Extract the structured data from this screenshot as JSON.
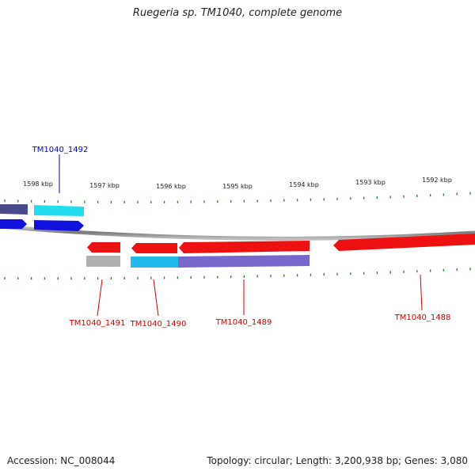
{
  "title": "Ruegeria sp. TM1040, complete genome",
  "footer": {
    "accession": "Accession: NC_008044",
    "summary": "Topology: circular; Length: 3,200,938 bp; Genes: 3,080"
  },
  "colors": {
    "red": "#ee1111",
    "blue": "#1111dd",
    "cyan": "#22ddee",
    "purple": "#7766cc",
    "navy": "#4a4a8a",
    "gray": "#b0b0b0",
    "tick": "#1f7a1f",
    "label_red": "#cc0000",
    "label_blue": "#0000cc"
  },
  "scale": {
    "labels": [
      "1598 kbp",
      "1597 kbp",
      "1596 kbp",
      "1595 kbp",
      "1594 kbp",
      "1593 kbp",
      "1592 kbp"
    ]
  },
  "genes": [
    {
      "id": "TM1040_1492",
      "strand": "plus"
    },
    {
      "id": "TM1040_1491",
      "strand": "minus"
    },
    {
      "id": "TM1040_1490",
      "strand": "minus"
    },
    {
      "id": "TM1040_1489",
      "strand": "minus"
    },
    {
      "id": "TM1040_1488",
      "strand": "minus"
    }
  ]
}
